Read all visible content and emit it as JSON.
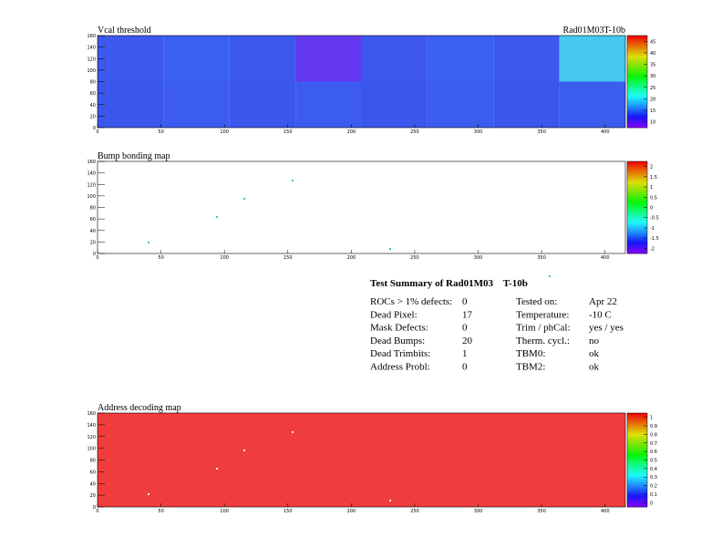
{
  "module": "Rad01M03T-10b",
  "axes": {
    "xticks": [
      0,
      50,
      100,
      150,
      200,
      250,
      300,
      350,
      400
    ],
    "yticks": [
      0,
      20,
      40,
      60,
      80,
      100,
      120,
      140,
      160
    ]
  },
  "maps": [
    {
      "title": "Vcal threshold",
      "colorbar": [
        45,
        40,
        35,
        30,
        25,
        20,
        15,
        10
      ]
    },
    {
      "title": "Bump bonding map",
      "colorbar": [
        2,
        1.5,
        1,
        0.5,
        0,
        -0.5,
        -1,
        -1.5,
        -2
      ]
    },
    {
      "title": "Address decoding map",
      "colorbar": [
        1,
        0.9,
        0.8,
        0.7,
        0.6,
        0.5,
        0.4,
        0.3,
        0.2,
        0.1,
        0
      ]
    }
  ],
  "summary": {
    "title": "Test Summary of Rad01M03    T-10b",
    "left": [
      [
        "ROCs > 1% defects:",
        "0"
      ],
      [
        "Dead Pixel:",
        "17"
      ],
      [
        "Mask Defects:",
        "0"
      ],
      [
        "Dead Bumps:",
        "20"
      ],
      [
        "Dead Trimbits:",
        "1"
      ],
      [
        "Address Probl:",
        "0"
      ]
    ],
    "right": [
      [
        "Tested on:",
        "Apr 22"
      ],
      [
        "Temperature:",
        "-10 C"
      ],
      [
        "Trim / phCal:",
        "yes / yes"
      ],
      [
        "Therm. cycl.:",
        "no"
      ],
      [
        "TBM0:",
        "ok"
      ],
      [
        "TBM2:",
        "ok"
      ]
    ]
  }
}
